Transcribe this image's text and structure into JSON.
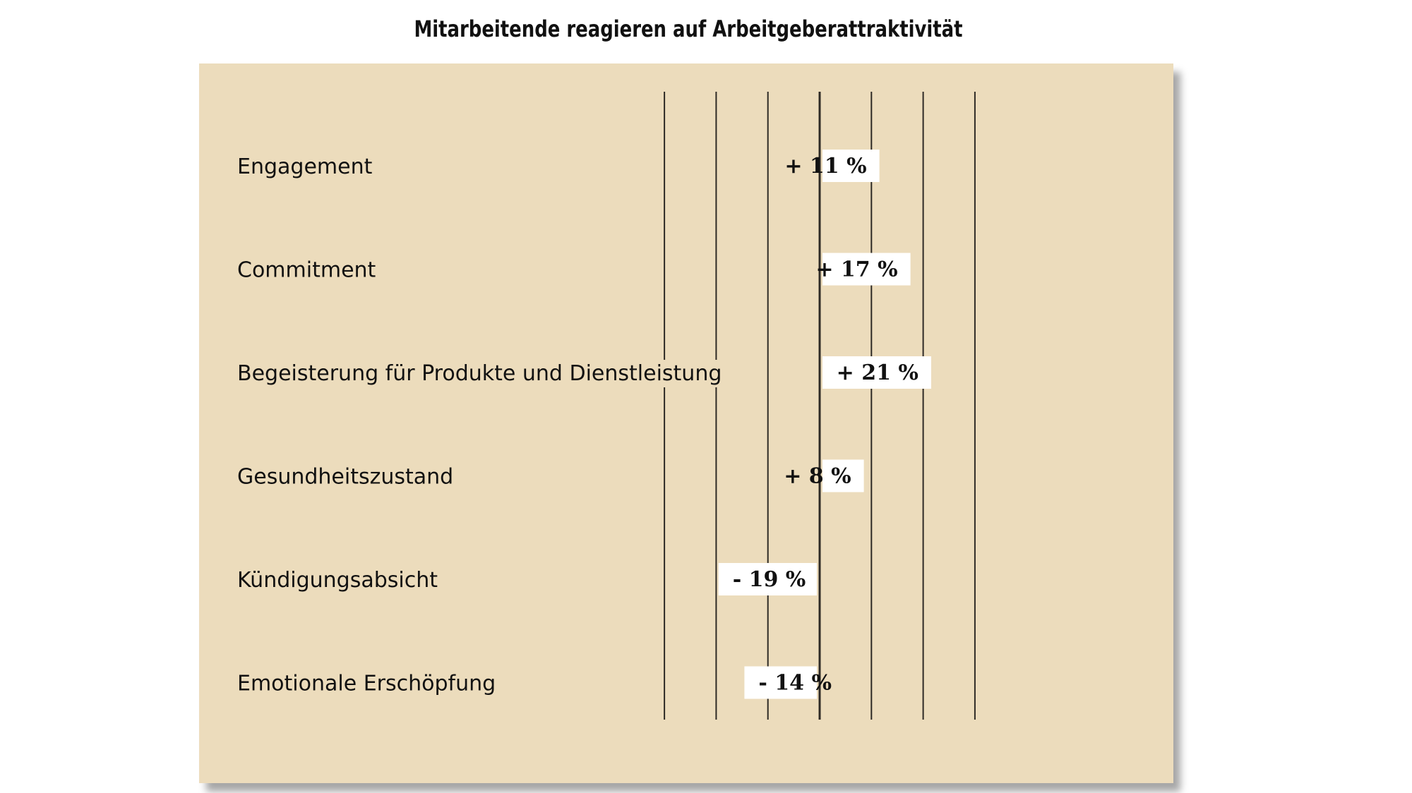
{
  "chart_data": {
    "type": "bar",
    "orientation": "horizontal",
    "title": "Mitarbeitende reagieren auf Arbeitgeberattraktivität",
    "xlabel": "",
    "ylabel": "",
    "categories": [
      "Engagement",
      "Commitment",
      "Begeisterung für Produkte und Dienstleistung",
      "Gesundheitszustand",
      "Kündigungsabsicht",
      "Emotionale Erschöpfung"
    ],
    "values": [
      11,
      17,
      21,
      8,
      -19,
      -14
    ],
    "value_labels": [
      "+ 11 %",
      "+ 17 %",
      "+ 21 %",
      "+ 8 %",
      "- 19 %",
      "- 14 %"
    ],
    "unit": "%",
    "xlim": [
      -30,
      30
    ],
    "grid": true,
    "legend": "none",
    "colors": {
      "panel": "#ecdcbc",
      "bars": "#ffffff",
      "gridlines": "#2e2a25",
      "text": "#111111"
    }
  }
}
